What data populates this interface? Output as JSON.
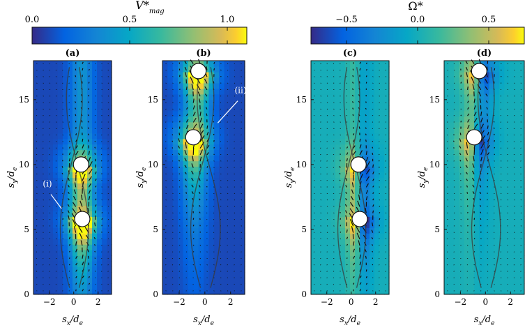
{
  "colorbars": [
    {
      "label": "V*",
      "sub": "mag",
      "ticks": [
        "0.0",
        "0.5",
        "1.0"
      ],
      "tick_values": [
        0,
        0.5,
        1.0
      ],
      "range": [
        0,
        1.1
      ]
    },
    {
      "label": "Ω*",
      "ticks": [
        "−0.5",
        "0.0",
        "0.5"
      ],
      "tick_values": [
        -0.5,
        0,
        0.5
      ],
      "range": [
        -0.75,
        0.75
      ]
    }
  ],
  "panels": [
    {
      "label": "(a)",
      "field": "vmag",
      "bodies": [
        [
          0.6,
          10.0
        ],
        [
          0.7,
          5.8
        ]
      ],
      "annotation": "(i)",
      "xticks": [
        "−2",
        "0",
        "2"
      ],
      "yticks": [
        "0",
        "5",
        "10",
        "15"
      ]
    },
    {
      "label": "(b)",
      "field": "vmag",
      "bodies": [
        [
          -0.5,
          17.2
        ],
        [
          -0.9,
          12.1
        ]
      ],
      "annotation": "(ii)",
      "xticks": [
        "−2",
        "0",
        "2"
      ],
      "yticks": [
        "0",
        "5",
        "10",
        "15"
      ]
    },
    {
      "label": "(c)",
      "field": "vort",
      "bodies": [
        [
          0.6,
          10.0
        ],
        [
          0.7,
          5.8
        ]
      ],
      "xticks": [
        "−2",
        "0",
        "2"
      ],
      "yticks": [
        "0",
        "5",
        "10",
        "15"
      ]
    },
    {
      "label": "(d)",
      "field": "vort",
      "bodies": [
        [
          -0.5,
          17.2
        ],
        [
          -0.9,
          12.1
        ]
      ],
      "xticks": [
        "−2",
        "0",
        "2"
      ],
      "yticks": [
        "0",
        "5",
        "10",
        "15"
      ]
    }
  ],
  "axes": {
    "x_label": "s",
    "x_sub": "x",
    "x_den": "/d",
    "x_den_sub": "e",
    "y_label": "s",
    "y_sub": "y",
    "y_den": "/d",
    "y_den_sub": "e",
    "xlim": [
      -3.3,
      3.1
    ],
    "ylim": [
      0,
      18
    ]
  },
  "colors": {
    "background": "#ffffff",
    "body": "#ffffff",
    "arrow": "#111111"
  }
}
